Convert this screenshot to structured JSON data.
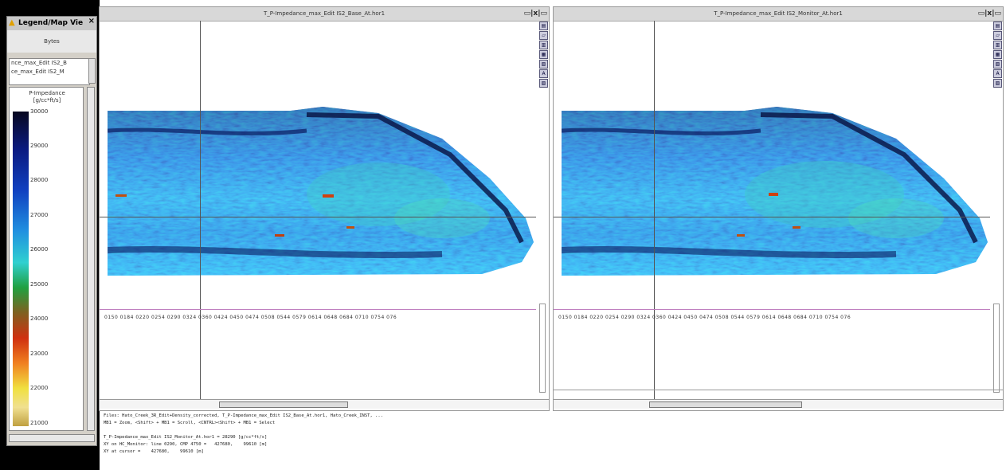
{
  "legend": {
    "title": "Legend/Map Vie",
    "subtitle": "Bytes",
    "files": [
      "nce_max_Edit IS2_B",
      "ce_max_Edit IS2_M"
    ],
    "unit_name": "P-Impedance",
    "unit": "[g/cc*ft/s]",
    "ticks": [
      "30000",
      "29000",
      "28000",
      "27000",
      "26000",
      "25000",
      "24000",
      "23000",
      "22000",
      "21000"
    ]
  },
  "left_window": {
    "title": "T_P-Impedance_max_Edit IS2_Base_At.hor1",
    "buttons": "▭|x|▭",
    "tools": [
      "▤",
      "▱",
      "▥",
      "▦",
      "▧",
      "A",
      "▨"
    ],
    "axis_labels": "0150  0184  0220  0254  0290  0324  0360  0424  0450  0474  0508  0544  0579  0614  0648  0684  0710  0754  076"
  },
  "right_window": {
    "title": "T_P-Impedance_max_Edit IS2_Monitor_At.hor1",
    "buttons": "▭|x|▭",
    "tools": [
      "▤",
      "▱",
      "▥",
      "▦",
      "▧",
      "A",
      "▨"
    ],
    "axis_labels": "0150  0184  0220  0254  0290  0324  0360  0424  0450  0474  0508  0544  0579  0614  0648  0684  0710  0754  076"
  },
  "info": {
    "line1": "Files: Hato_Creek_3R_Edit+Density_corrected, T_P-Impedance_max_Edit IS2_Base_At.hor1, Hato_Creek_INST, ...",
    "line2": "MB1 = Zoom, <Shift> + MB1 = Scroll, <CNTRL><Shift> + MB1 = Select",
    "line3": "T_P-Impedance_max_Edit IS2_Monitor_At.hor1 = 28290 [g/cc*ft/s]",
    "line4": "XY on HC_Monitor: line 0290, CMP 4750 =   427680,    99610 [m]",
    "line5": "XY at cursor =    427680,    99610 [m]"
  }
}
